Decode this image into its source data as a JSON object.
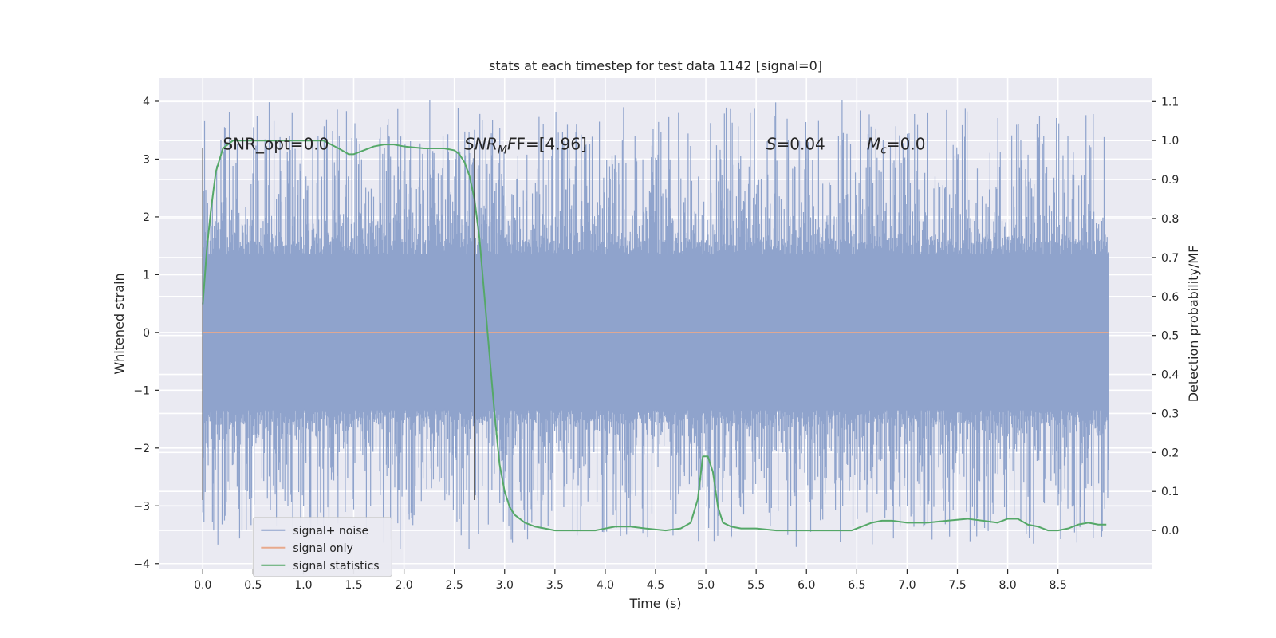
{
  "chart_data": {
    "type": "line",
    "title": "stats at each timestep for test data 1142 [signal=0]",
    "xlabel": "Time (s)",
    "ylabel": "Whitened strain",
    "y2label": "Detection probability/MF",
    "xlim": [
      -0.43,
      9.43
    ],
    "ylim": [
      -4.1,
      4.4
    ],
    "y2lim": [
      -0.1,
      1.16
    ],
    "xticks": [
      "0.0",
      "0.5",
      "1.0",
      "1.5",
      "2.0",
      "2.5",
      "3.0",
      "3.5",
      "4.0",
      "4.5",
      "5.0",
      "5.5",
      "6.0",
      "6.5",
      "7.0",
      "7.5",
      "8.0",
      "8.5"
    ],
    "xtick_values": [
      0,
      0.5,
      1,
      1.5,
      2,
      2.5,
      3,
      3.5,
      4,
      4.5,
      5,
      5.5,
      6,
      6.5,
      7,
      7.5,
      8,
      8.5
    ],
    "yticks": [
      "−4",
      "−3",
      "−2",
      "−1",
      "0",
      "1",
      "2",
      "3",
      "4"
    ],
    "ytick_values": [
      -4,
      -3,
      -2,
      -1,
      0,
      1,
      2,
      3,
      4
    ],
    "y2ticks": [
      "0.0",
      "0.1",
      "0.2",
      "0.3",
      "0.4",
      "0.5",
      "0.6",
      "0.7",
      "0.8",
      "0.9",
      "1.0",
      "1.1"
    ],
    "y2tick_values": [
      0,
      0.1,
      0.2,
      0.3,
      0.4,
      0.5,
      0.6,
      0.7,
      0.8,
      0.9,
      1.0,
      1.1
    ],
    "grid": true,
    "legend": {
      "placement": "lower-left",
      "entries": [
        {
          "label": "signal+ noise",
          "color": "#8fa3cc"
        },
        {
          "label": "signal only",
          "color": "#e8a98c"
        },
        {
          "label": "signal statistics",
          "color": "#55a868"
        }
      ]
    },
    "annotations": {
      "snr_opt": "SNR_opt=0.0",
      "snr_mf_main": "SNR",
      "snr_mf_sub": "M",
      "snr_mf_rest": "F=[4.96]",
      "s_main": "S",
      "s_rest": "=0.04",
      "mc_main": "M",
      "mc_sub": "c",
      "mc_rest": "=0.0"
    },
    "vlines": [
      {
        "x": 0.0,
        "y_range": [
          -2.9,
          3.2
        ]
      },
      {
        "x": 2.7,
        "y_range": [
          -2.9,
          3.2
        ]
      }
    ],
    "series": [
      {
        "name": "signal+ noise",
        "axis": "left",
        "kind": "noise",
        "x_range": [
          0.0,
          9.0
        ],
        "typical_amplitude": 1.35,
        "peak_max": 4.02,
        "peak_min": -3.75
      },
      {
        "name": "signal only",
        "axis": "left",
        "x": [
          0.0,
          9.0
        ],
        "y": [
          0.0,
          0.0
        ]
      },
      {
        "name": "signal statistics",
        "axis": "right",
        "x": [
          0.0,
          0.04,
          0.08,
          0.13,
          0.2,
          0.3,
          0.5,
          0.8,
          1.0,
          1.2,
          1.35,
          1.45,
          1.5,
          1.6,
          1.7,
          1.8,
          1.9,
          2.0,
          2.2,
          2.4,
          2.5,
          2.55,
          2.6,
          2.65,
          2.7,
          2.75,
          2.8,
          2.85,
          2.9,
          2.95,
          3.0,
          3.05,
          3.1,
          3.2,
          3.3,
          3.4,
          3.5,
          3.7,
          3.9,
          4.1,
          4.25,
          4.4,
          4.6,
          4.75,
          4.85,
          4.92,
          4.97,
          5.02,
          5.07,
          5.12,
          5.17,
          5.25,
          5.35,
          5.5,
          5.7,
          5.9,
          6.1,
          6.3,
          6.45,
          6.55,
          6.65,
          6.75,
          6.85,
          7.0,
          7.2,
          7.4,
          7.6,
          7.75,
          7.9,
          8.0,
          8.1,
          8.2,
          8.3,
          8.4,
          8.5,
          8.6,
          8.7,
          8.8,
          8.9,
          8.98
        ],
        "y": [
          0.58,
          0.72,
          0.82,
          0.92,
          0.98,
          1.0,
          1.0,
          1.0,
          1.0,
          1.0,
          0.98,
          0.965,
          0.965,
          0.975,
          0.985,
          0.99,
          0.99,
          0.985,
          0.98,
          0.98,
          0.975,
          0.965,
          0.945,
          0.91,
          0.85,
          0.75,
          0.6,
          0.45,
          0.3,
          0.17,
          0.1,
          0.06,
          0.04,
          0.02,
          0.01,
          0.005,
          0.0,
          0.0,
          0.0,
          0.01,
          0.01,
          0.005,
          0.0,
          0.005,
          0.02,
          0.08,
          0.19,
          0.19,
          0.15,
          0.06,
          0.02,
          0.01,
          0.005,
          0.005,
          0.0,
          0.0,
          0.0,
          0.0,
          0.0,
          0.01,
          0.02,
          0.025,
          0.025,
          0.02,
          0.02,
          0.025,
          0.03,
          0.025,
          0.02,
          0.03,
          0.03,
          0.015,
          0.01,
          0.0,
          0.0,
          0.005,
          0.015,
          0.02,
          0.015,
          0.015
        ]
      }
    ]
  }
}
